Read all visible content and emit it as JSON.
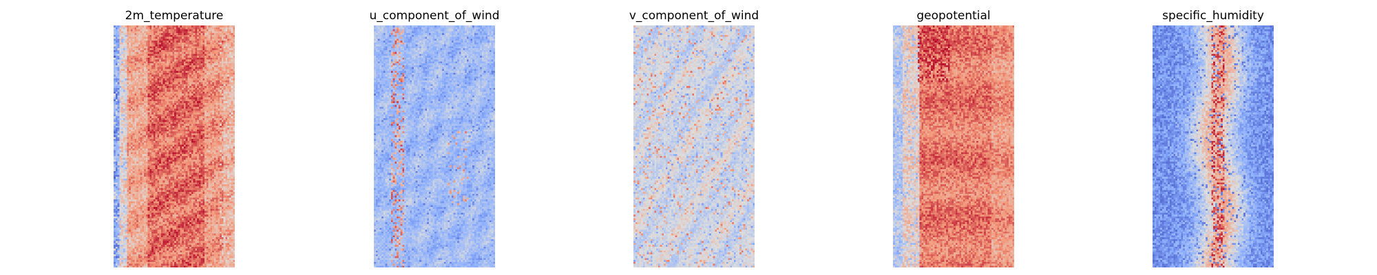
{
  "figure": {
    "background": "#ffffff"
  },
  "chart_data": [
    {
      "type": "heatmap",
      "title": "2m_temperature",
      "colormap": "coolwarm",
      "axes": "off",
      "grid": false
    },
    {
      "type": "heatmap",
      "title": "u_component_of_wind",
      "colormap": "coolwarm",
      "axes": "off",
      "grid": false
    },
    {
      "type": "heatmap",
      "title": "v_component_of_wind",
      "colormap": "coolwarm",
      "axes": "off",
      "grid": false
    },
    {
      "type": "heatmap",
      "title": "geopotential",
      "colormap": "coolwarm",
      "axes": "off",
      "grid": false
    },
    {
      "type": "heatmap",
      "title": "specific_humidity",
      "colormap": "coolwarm",
      "axes": "off",
      "grid": false
    }
  ]
}
